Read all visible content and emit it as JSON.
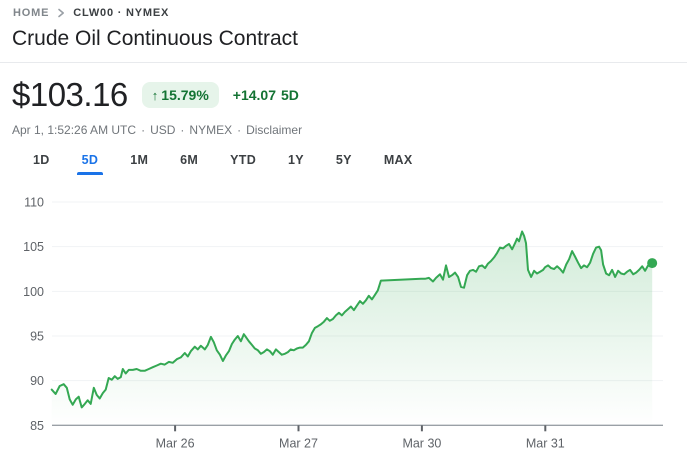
{
  "breadcrumb": {
    "home": "HOME",
    "symbol": "CLW00 · NYMEX"
  },
  "title": "Crude Oil Continuous Contract",
  "quote": {
    "price": "$103.16",
    "up_arrow": "↑",
    "change_percent": "15.79%",
    "change_amount": "+14.07",
    "change_period": "5D"
  },
  "meta": {
    "timestamp": "Apr 1, 1:52:26 AM UTC",
    "separator": "·",
    "currency": "USD",
    "exchange": "NYMEX",
    "disclaimer_label": "Disclaimer"
  },
  "tabs": {
    "active_index": 1,
    "items": [
      {
        "label": "1D"
      },
      {
        "label": "5D"
      },
      {
        "label": "1M"
      },
      {
        "label": "6M"
      },
      {
        "label": "YTD"
      },
      {
        "label": "1Y"
      },
      {
        "label": "5Y"
      },
      {
        "label": "MAX"
      }
    ]
  },
  "colors": {
    "accent_blue": "#1a73e8",
    "positive_green_text": "#137333",
    "badge_background": "#e6f4ea",
    "line_green": "#34a853",
    "grid_line": "#f1f3f4",
    "axis_line": "#9aa0a6",
    "axis_text": "#5f6368"
  },
  "chart_data": {
    "type": "line",
    "title": "Crude Oil Continuous Contract, 5-day price",
    "xlabel": "",
    "ylabel": "USD",
    "ylim": [
      85,
      110
    ],
    "y_ticks": [
      85,
      90,
      95,
      100,
      105,
      110
    ],
    "x_unit": "trading-day index (0 ≈ Mar 25 open, weekend compressed)",
    "x_range": [
      0,
      4.866
    ],
    "x_ticks": [
      {
        "pos": 1,
        "label": "Mar 26"
      },
      {
        "pos": 2,
        "label": "Mar 27"
      },
      {
        "pos": 3,
        "label": "Mar 30"
      },
      {
        "pos": 4,
        "label": "Mar 31"
      }
    ],
    "grid": true,
    "legend": false,
    "line_color": "#34a853",
    "fill_top": "rgba(52,168,83,0.26)",
    "fill_bottom": "rgba(52,168,83,0)",
    "end_dot": {
      "x": 4.866,
      "y": 103.16
    },
    "last_price": 103.16,
    "series": [
      {
        "name": "CLW00",
        "points": [
          [
            0.0,
            89.0
          ],
          [
            0.032,
            88.5
          ],
          [
            0.065,
            89.4
          ],
          [
            0.097,
            89.6
          ],
          [
            0.122,
            89.2
          ],
          [
            0.146,
            87.9
          ],
          [
            0.17,
            87.3
          ],
          [
            0.195,
            87.9
          ],
          [
            0.219,
            88.2
          ],
          [
            0.243,
            87.0
          ],
          [
            0.268,
            87.4
          ],
          [
            0.292,
            87.8
          ],
          [
            0.316,
            87.4
          ],
          [
            0.341,
            89.2
          ],
          [
            0.365,
            88.4
          ],
          [
            0.389,
            88.0
          ],
          [
            0.414,
            88.6
          ],
          [
            0.438,
            89.0
          ],
          [
            0.462,
            90.3
          ],
          [
            0.487,
            90.1
          ],
          [
            0.511,
            90.5
          ],
          [
            0.535,
            90.2
          ],
          [
            0.56,
            90.4
          ],
          [
            0.576,
            91.3
          ],
          [
            0.6,
            90.8
          ],
          [
            0.625,
            91.2
          ],
          [
            0.657,
            91.2
          ],
          [
            0.689,
            91.3
          ],
          [
            0.722,
            91.1
          ],
          [
            0.754,
            91.1
          ],
          [
            0.787,
            91.3
          ],
          [
            0.819,
            91.5
          ],
          [
            0.852,
            91.7
          ],
          [
            0.884,
            91.9
          ],
          [
            0.916,
            91.8
          ],
          [
            0.949,
            92.1
          ],
          [
            0.981,
            92.0
          ],
          [
            1.014,
            92.4
          ],
          [
            1.046,
            92.6
          ],
          [
            1.079,
            93.1
          ],
          [
            1.103,
            92.7
          ],
          [
            1.127,
            93.3
          ],
          [
            1.16,
            93.8
          ],
          [
            1.184,
            93.5
          ],
          [
            1.208,
            93.9
          ],
          [
            1.233,
            93.6
          ],
          [
            1.241,
            93.5
          ],
          [
            1.265,
            94.0
          ],
          [
            1.29,
            94.9
          ],
          [
            1.314,
            94.3
          ],
          [
            1.338,
            93.4
          ],
          [
            1.363,
            92.9
          ],
          [
            1.387,
            92.2
          ],
          [
            1.411,
            92.8
          ],
          [
            1.436,
            93.3
          ],
          [
            1.46,
            94.1
          ],
          [
            1.484,
            94.6
          ],
          [
            1.508,
            95.0
          ],
          [
            1.533,
            94.4
          ],
          [
            1.557,
            95.2
          ],
          [
            1.573,
            94.9
          ],
          [
            1.598,
            94.4
          ],
          [
            1.622,
            94.0
          ],
          [
            1.646,
            93.6
          ],
          [
            1.671,
            93.4
          ],
          [
            1.695,
            93.0
          ],
          [
            1.719,
            93.2
          ],
          [
            1.744,
            93.5
          ],
          [
            1.768,
            93.3
          ],
          [
            1.792,
            92.9
          ],
          [
            1.817,
            93.5
          ],
          [
            1.841,
            93.2
          ],
          [
            1.865,
            92.9
          ],
          [
            1.89,
            93.0
          ],
          [
            1.914,
            93.2
          ],
          [
            1.938,
            93.5
          ],
          [
            1.962,
            93.4
          ],
          [
            1.987,
            93.6
          ],
          [
            2.011,
            93.7
          ],
          [
            2.035,
            93.7
          ],
          [
            2.06,
            94.0
          ],
          [
            2.084,
            94.4
          ],
          [
            2.108,
            95.3
          ],
          [
            2.133,
            95.9
          ],
          [
            2.157,
            96.1
          ],
          [
            2.181,
            96.3
          ],
          [
            2.206,
            96.6
          ],
          [
            2.23,
            97.0
          ],
          [
            2.254,
            96.7
          ],
          [
            2.279,
            96.9
          ],
          [
            2.303,
            97.3
          ],
          [
            2.327,
            97.6
          ],
          [
            2.352,
            97.3
          ],
          [
            2.376,
            97.7
          ],
          [
            2.4,
            98.0
          ],
          [
            2.425,
            98.3
          ],
          [
            2.449,
            97.9
          ],
          [
            2.473,
            98.4
          ],
          [
            2.498,
            98.9
          ],
          [
            2.522,
            98.6
          ],
          [
            2.546,
            99.0
          ],
          [
            2.57,
            99.5
          ],
          [
            2.595,
            99.1
          ],
          [
            2.619,
            99.6
          ],
          [
            2.643,
            100.1
          ],
          [
            2.668,
            101.2
          ],
          [
            2.822,
            101.3
          ],
          [
            2.993,
            101.4
          ],
          [
            3.025,
            101.4
          ],
          [
            3.057,
            101.5
          ],
          [
            3.09,
            101.1
          ],
          [
            3.114,
            101.5
          ],
          [
            3.147,
            101.9
          ],
          [
            3.171,
            101.3
          ],
          [
            3.195,
            102.9
          ],
          [
            3.22,
            101.6
          ],
          [
            3.244,
            101.8
          ],
          [
            3.268,
            102.1
          ],
          [
            3.293,
            101.6
          ],
          [
            3.317,
            100.5
          ],
          [
            3.341,
            100.4
          ],
          [
            3.366,
            101.8
          ],
          [
            3.39,
            102.3
          ],
          [
            3.414,
            102.4
          ],
          [
            3.439,
            102.2
          ],
          [
            3.463,
            102.8
          ],
          [
            3.487,
            102.9
          ],
          [
            3.512,
            102.6
          ],
          [
            3.536,
            103.1
          ],
          [
            3.56,
            103.4
          ],
          [
            3.585,
            103.8
          ],
          [
            3.609,
            104.3
          ],
          [
            3.633,
            104.9
          ],
          [
            3.658,
            104.8
          ],
          [
            3.682,
            105.1
          ],
          [
            3.706,
            105.3
          ],
          [
            3.731,
            104.7
          ],
          [
            3.755,
            105.4
          ],
          [
            3.771,
            105.9
          ],
          [
            3.787,
            105.6
          ],
          [
            3.812,
            106.7
          ],
          [
            3.828,
            106.2
          ],
          [
            3.844,
            105.4
          ],
          [
            3.86,
            102.4
          ],
          [
            3.885,
            101.6
          ],
          [
            3.909,
            102.3
          ],
          [
            3.933,
            102.0
          ],
          [
            3.958,
            102.2
          ],
          [
            3.982,
            102.4
          ],
          [
            3.998,
            102.7
          ],
          [
            4.023,
            102.9
          ],
          [
            4.047,
            102.6
          ],
          [
            4.071,
            102.5
          ],
          [
            4.096,
            102.8
          ],
          [
            4.12,
            102.5
          ],
          [
            4.144,
            102.1
          ],
          [
            4.169,
            103.0
          ],
          [
            4.193,
            103.6
          ],
          [
            4.217,
            104.5
          ],
          [
            4.241,
            103.9
          ],
          [
            4.266,
            103.2
          ],
          [
            4.29,
            102.6
          ],
          [
            4.314,
            102.9
          ],
          [
            4.339,
            102.7
          ],
          [
            4.363,
            103.2
          ],
          [
            4.387,
            104.2
          ],
          [
            4.412,
            104.9
          ],
          [
            4.436,
            105.0
          ],
          [
            4.452,
            104.6
          ],
          [
            4.468,
            103.0
          ],
          [
            4.493,
            102.0
          ],
          [
            4.517,
            101.8
          ],
          [
            4.541,
            102.4
          ],
          [
            4.566,
            101.6
          ],
          [
            4.59,
            102.3
          ],
          [
            4.614,
            102.0
          ],
          [
            4.639,
            101.9
          ],
          [
            4.663,
            102.2
          ],
          [
            4.687,
            102.4
          ],
          [
            4.712,
            101.9
          ],
          [
            4.736,
            102.1
          ],
          [
            4.76,
            102.4
          ],
          [
            4.785,
            102.8
          ],
          [
            4.809,
            102.3
          ],
          [
            4.833,
            102.9
          ],
          [
            4.85,
            102.9
          ],
          [
            4.866,
            103.16
          ]
        ]
      }
    ]
  }
}
